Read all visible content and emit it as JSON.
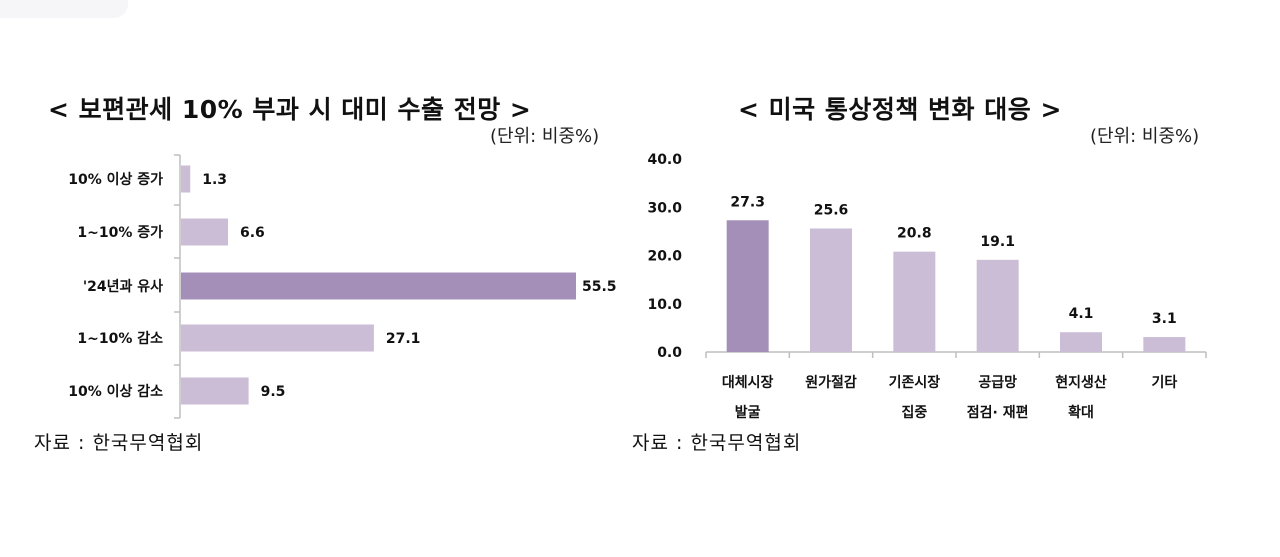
{
  "chart_data": [
    {
      "type": "bar",
      "orientation": "horizontal",
      "title": "< 보편관세 10% 부과 시 대미 수출 전망 >",
      "unit": "(단위: 비중%)",
      "source": "자료 : 한국무역협회",
      "categories": [
        "10% 이상 증가",
        "1~10% 증가",
        "'24년과 유사",
        "1~10% 감소",
        "10% 이상 감소"
      ],
      "values": [
        1.3,
        6.6,
        55.5,
        27.1,
        9.5
      ],
      "highlight_index": 2,
      "xlim": [
        0,
        57
      ],
      "colors": {
        "bar": "#cbbdd6",
        "highlight": "#a48fb8",
        "axis": "#bfbfbf"
      }
    },
    {
      "type": "bar",
      "orientation": "vertical",
      "title": "< 미국 통상정책 변화 대응 >",
      "unit": "(단위: 비중%)",
      "source": "자료 : 한국무역협회",
      "categories": [
        [
          "대체시장",
          "발굴"
        ],
        [
          "원가절감"
        ],
        [
          "기존시장",
          "집중"
        ],
        [
          "공급망",
          "점검· 재편"
        ],
        [
          "현지생산",
          "확대"
        ],
        [
          "기타"
        ]
      ],
      "values": [
        27.3,
        25.6,
        20.8,
        19.1,
        4.1,
        3.1
      ],
      "highlight_index": 0,
      "ylim": [
        0,
        40
      ],
      "yticks": [
        "0.0",
        "10.0",
        "20.0",
        "30.0",
        "40.0"
      ],
      "grid": false,
      "colors": {
        "bar": "#cbbdd6",
        "highlight": "#a48fb8",
        "axis": "#bfbfbf"
      }
    }
  ]
}
